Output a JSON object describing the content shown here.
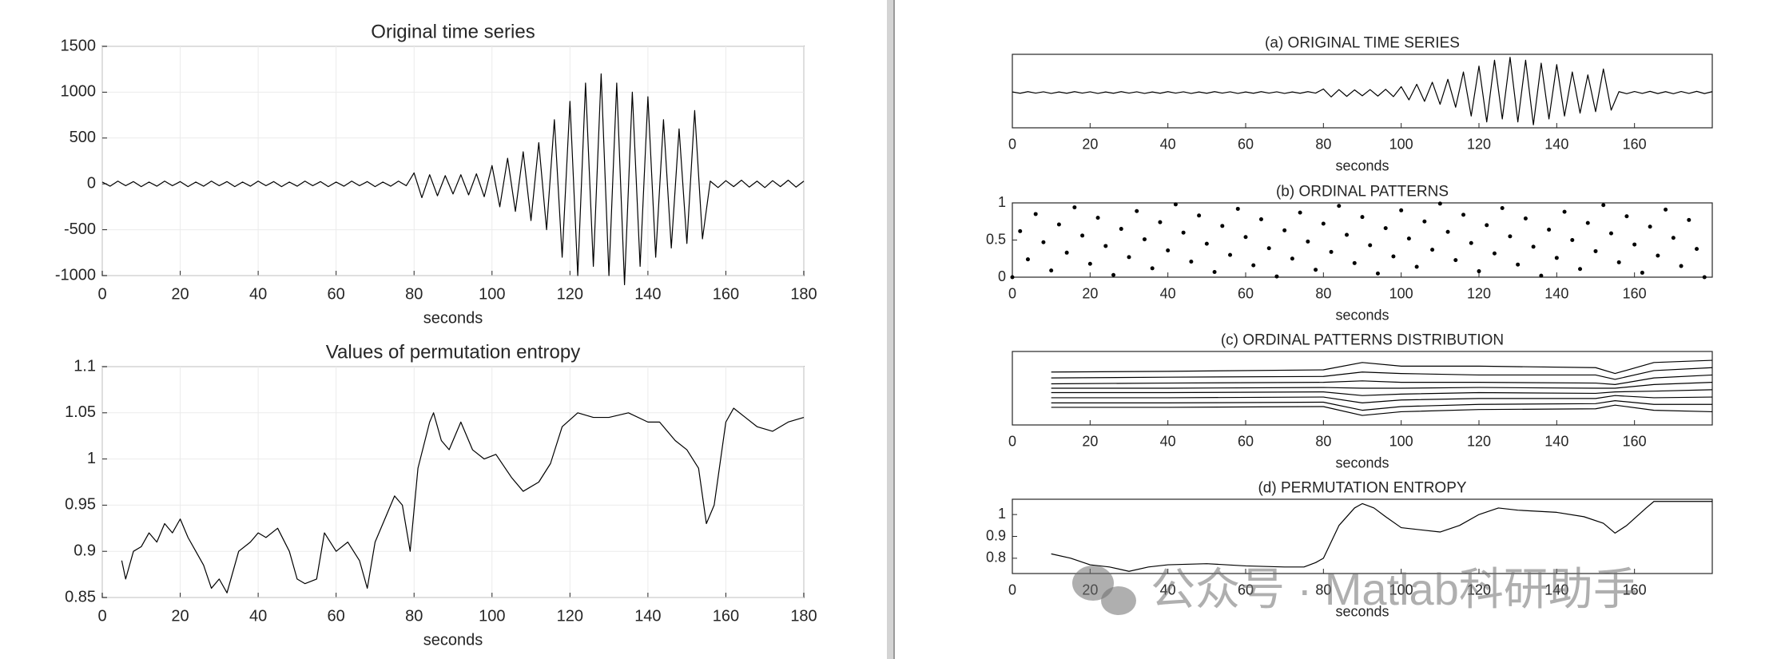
{
  "chart_data": [
    {
      "type": "line",
      "title": "Original time series",
      "xlabel": "seconds",
      "color": "#000000",
      "grid": true,
      "xlim": [
        0,
        180
      ],
      "ylim": [
        -1000,
        1500
      ],
      "xticks": [
        0,
        20,
        40,
        60,
        80,
        100,
        120,
        140,
        160,
        180
      ],
      "yticks": [
        -1000,
        -500,
        0,
        500,
        1000,
        1500
      ],
      "x": [
        0,
        2,
        4,
        6,
        8,
        10,
        12,
        14,
        16,
        18,
        20,
        22,
        24,
        26,
        28,
        30,
        32,
        34,
        36,
        38,
        40,
        42,
        44,
        46,
        48,
        50,
        52,
        54,
        56,
        58,
        60,
        62,
        64,
        66,
        68,
        70,
        72,
        74,
        76,
        78,
        80,
        82,
        84,
        86,
        88,
        90,
        92,
        94,
        96,
        98,
        100,
        102,
        104,
        106,
        108,
        110,
        112,
        114,
        116,
        118,
        120,
        122,
        124,
        126,
        128,
        130,
        132,
        134,
        136,
        138,
        140,
        142,
        144,
        146,
        148,
        150,
        152,
        154,
        156,
        158,
        160,
        162,
        164,
        166,
        168,
        170,
        172,
        174,
        176,
        178,
        180
      ],
      "values": [
        20,
        -25,
        30,
        -20,
        25,
        -30,
        20,
        -25,
        30,
        -20,
        25,
        -30,
        20,
        -25,
        30,
        -20,
        25,
        -30,
        20,
        -25,
        30,
        -20,
        25,
        -30,
        20,
        -25,
        30,
        -20,
        25,
        -30,
        20,
        -25,
        30,
        -20,
        25,
        -30,
        20,
        -25,
        30,
        -20,
        120,
        -150,
        100,
        -130,
        90,
        -110,
        100,
        -120,
        110,
        -140,
        200,
        -250,
        280,
        -300,
        350,
        -400,
        450,
        -500,
        700,
        -800,
        900,
        -1000,
        1100,
        -900,
        1200,
        -1000,
        1100,
        -1100,
        1000,
        -900,
        950,
        -800,
        700,
        -700,
        600,
        -650,
        800,
        -600,
        30,
        -40,
        35,
        -30,
        40,
        -35,
        30,
        -40,
        35,
        -30,
        40,
        -35,
        30
      ]
    },
    {
      "type": "line",
      "title": "Values of permutation entropy",
      "xlabel": "seconds",
      "color": "#000000",
      "grid": true,
      "xlim": [
        0,
        180
      ],
      "ylim": [
        0.85,
        1.1
      ],
      "xticks": [
        0,
        20,
        40,
        60,
        80,
        100,
        120,
        140,
        160,
        180
      ],
      "yticks": [
        0.85,
        0.9,
        0.95,
        1,
        1.05,
        1.1
      ],
      "x": [
        5,
        6,
        8,
        10,
        12,
        14,
        16,
        18,
        20,
        22,
        24,
        26,
        28,
        30,
        32,
        35,
        38,
        40,
        42,
        45,
        48,
        50,
        52,
        55,
        57,
        60,
        63,
        66,
        68,
        70,
        73,
        75,
        77,
        79,
        81,
        84,
        85,
        87,
        89,
        92,
        95,
        98,
        101,
        105,
        108,
        112,
        115,
        118,
        122,
        126,
        130,
        135,
        140,
        143,
        147,
        150,
        153,
        155,
        157,
        160,
        162,
        165,
        168,
        172,
        176,
        180
      ],
      "values": [
        0.89,
        0.87,
        0.9,
        0.905,
        0.92,
        0.91,
        0.93,
        0.92,
        0.935,
        0.915,
        0.9,
        0.885,
        0.86,
        0.87,
        0.855,
        0.9,
        0.91,
        0.92,
        0.915,
        0.925,
        0.9,
        0.87,
        0.865,
        0.87,
        0.92,
        0.9,
        0.91,
        0.89,
        0.86,
        0.91,
        0.94,
        0.96,
        0.95,
        0.9,
        0.99,
        1.04,
        1.05,
        1.02,
        1.01,
        1.04,
        1.01,
        1.0,
        1.005,
        0.98,
        0.965,
        0.975,
        0.995,
        1.035,
        1.05,
        1.045,
        1.045,
        1.05,
        1.04,
        1.04,
        1.02,
        1.01,
        0.99,
        0.93,
        0.95,
        1.04,
        1.055,
        1.045,
        1.035,
        1.03,
        1.04,
        1.045
      ]
    },
    {
      "type": "line",
      "title": "(a) ORIGINAL TIME SERIES",
      "xlabel": "seconds",
      "color": "#000000",
      "grid": false,
      "xlim": [
        0,
        180
      ],
      "ylim": [
        -1200,
        1300
      ],
      "xticks": [
        0,
        20,
        40,
        60,
        80,
        100,
        120,
        140,
        160
      ],
      "x": [
        0,
        2,
        4,
        6,
        8,
        10,
        12,
        14,
        16,
        18,
        20,
        22,
        24,
        26,
        28,
        30,
        32,
        34,
        36,
        38,
        40,
        42,
        44,
        46,
        48,
        50,
        52,
        54,
        56,
        58,
        60,
        62,
        64,
        66,
        68,
        70,
        72,
        74,
        76,
        78,
        80,
        82,
        84,
        86,
        88,
        90,
        92,
        94,
        96,
        98,
        100,
        102,
        104,
        106,
        108,
        110,
        112,
        114,
        116,
        118,
        120,
        122,
        124,
        126,
        128,
        130,
        132,
        134,
        136,
        138,
        140,
        142,
        144,
        146,
        148,
        150,
        152,
        154,
        156,
        158,
        160,
        162,
        164,
        166,
        168,
        170,
        172,
        174,
        176,
        178,
        180
      ],
      "values": [
        20,
        -25,
        30,
        -20,
        25,
        -30,
        20,
        -25,
        30,
        -20,
        25,
        -30,
        20,
        -25,
        30,
        -20,
        25,
        -30,
        20,
        -25,
        30,
        -20,
        25,
        -30,
        20,
        -25,
        30,
        -20,
        25,
        -30,
        20,
        -25,
        30,
        -20,
        25,
        -30,
        20,
        -25,
        30,
        -20,
        120,
        -150,
        100,
        -130,
        90,
        -110,
        100,
        -120,
        110,
        -140,
        200,
        -250,
        280,
        -300,
        350,
        -400,
        450,
        -500,
        700,
        -800,
        900,
        -1000,
        1100,
        -900,
        1200,
        -1000,
        1100,
        -1100,
        1000,
        -900,
        950,
        -800,
        700,
        -700,
        600,
        -650,
        800,
        -600,
        30,
        -40,
        35,
        -30,
        40,
        -35,
        30,
        -40,
        35,
        -30,
        40,
        -35,
        30
      ]
    },
    {
      "type": "scatter",
      "title": "(b) ORDINAL PATTERNS",
      "xlabel": "seconds",
      "color": "#000000",
      "grid": false,
      "xlim": [
        0,
        180
      ],
      "ylim": [
        0,
        1
      ],
      "xticks": [
        0,
        20,
        40,
        60,
        80,
        100,
        120,
        140,
        160
      ],
      "yticks": [
        0,
        0.5,
        1
      ],
      "x": [
        0,
        2,
        4,
        6,
        8,
        10,
        12,
        14,
        16,
        18,
        20,
        22,
        24,
        26,
        28,
        30,
        32,
        34,
        36,
        38,
        40,
        42,
        44,
        46,
        48,
        50,
        52,
        54,
        56,
        58,
        60,
        62,
        64,
        66,
        68,
        70,
        72,
        74,
        76,
        78,
        80,
        82,
        84,
        86,
        88,
        90,
        92,
        94,
        96,
        98,
        100,
        102,
        104,
        106,
        108,
        110,
        112,
        114,
        116,
        118,
        120,
        122,
        124,
        126,
        128,
        130,
        132,
        134,
        136,
        138,
        140,
        142,
        144,
        146,
        148,
        150,
        152,
        154,
        156,
        158,
        160,
        162,
        164,
        166,
        168,
        170,
        172,
        174,
        176,
        178
      ],
      "values": [
        0,
        0.62,
        0.24,
        0.85,
        0.47,
        0.09,
        0.71,
        0.33,
        0.94,
        0.56,
        0.18,
        0.8,
        0.42,
        0.03,
        0.65,
        0.27,
        0.89,
        0.51,
        0.12,
        0.74,
        0.36,
        0.98,
        0.6,
        0.21,
        0.83,
        0.45,
        0.07,
        0.69,
        0.3,
        0.92,
        0.54,
        0.16,
        0.78,
        0.39,
        0.01,
        0.63,
        0.25,
        0.87,
        0.48,
        0.1,
        0.72,
        0.34,
        0.96,
        0.57,
        0.19,
        0.81,
        0.43,
        0.05,
        0.66,
        0.28,
        0.9,
        0.52,
        0.14,
        0.75,
        0.37,
        0.99,
        0.61,
        0.23,
        0.84,
        0.46,
        0.08,
        0.7,
        0.32,
        0.93,
        0.55,
        0.17,
        0.79,
        0.41,
        0.02,
        0.64,
        0.26,
        0.88,
        0.5,
        0.11,
        0.73,
        0.35,
        0.97,
        0.59,
        0.2,
        0.82,
        0.44,
        0.06,
        0.68,
        0.29,
        0.91,
        0.53,
        0.15,
        0.77,
        0.38,
        0
      ]
    },
    {
      "type": "line",
      "title": "(c) ORDINAL PATTERNS DISTRIBUTION",
      "xlabel": "seconds",
      "color": "#000000",
      "grid": false,
      "xlim": [
        0,
        180
      ],
      "ylim": [
        0,
        1
      ],
      "xticks": [
        0,
        20,
        40,
        60,
        80,
        100,
        120,
        140,
        160
      ],
      "x": [
        10,
        40,
        80,
        90,
        100,
        120,
        150,
        155,
        165,
        180
      ],
      "series": [
        {
          "values": [
            0.72,
            0.73,
            0.75,
            0.85,
            0.8,
            0.8,
            0.78,
            0.7,
            0.85,
            0.88
          ]
        },
        {
          "values": [
            0.64,
            0.65,
            0.66,
            0.72,
            0.7,
            0.68,
            0.68,
            0.62,
            0.74,
            0.78
          ]
        },
        {
          "values": [
            0.56,
            0.57,
            0.58,
            0.6,
            0.58,
            0.58,
            0.57,
            0.55,
            0.64,
            0.68
          ]
        },
        {
          "values": [
            0.5,
            0.5,
            0.51,
            0.5,
            0.5,
            0.51,
            0.5,
            0.5,
            0.55,
            0.58
          ]
        },
        {
          "values": [
            0.44,
            0.44,
            0.45,
            0.4,
            0.42,
            0.44,
            0.43,
            0.45,
            0.46,
            0.48
          ]
        },
        {
          "values": [
            0.37,
            0.37,
            0.38,
            0.3,
            0.34,
            0.36,
            0.36,
            0.4,
            0.37,
            0.38
          ]
        },
        {
          "values": [
            0.3,
            0.3,
            0.31,
            0.2,
            0.25,
            0.28,
            0.29,
            0.33,
            0.28,
            0.28
          ]
        },
        {
          "values": [
            0.24,
            0.24,
            0.25,
            0.13,
            0.18,
            0.21,
            0.22,
            0.27,
            0.2,
            0.18
          ]
        }
      ]
    },
    {
      "type": "line",
      "title": "(d) PERMUTATION ENTROPY",
      "xlabel": "seconds",
      "color": "#000000",
      "grid": false,
      "xlim": [
        0,
        180
      ],
      "ylim": [
        0.73,
        1.07
      ],
      "xticks": [
        0,
        20,
        40,
        60,
        80,
        100,
        120,
        140,
        160
      ],
      "yticks": [
        0.8,
        0.9,
        1
      ],
      "x": [
        10,
        15,
        20,
        25,
        30,
        35,
        40,
        50,
        60,
        70,
        75,
        78,
        80,
        84,
        88,
        90,
        93,
        96,
        100,
        105,
        110,
        115,
        120,
        125,
        130,
        140,
        147,
        152,
        155,
        158,
        163,
        165,
        180
      ],
      "values": [
        0.82,
        0.8,
        0.77,
        0.76,
        0.74,
        0.76,
        0.77,
        0.775,
        0.765,
        0.76,
        0.76,
        0.78,
        0.8,
        0.95,
        1.03,
        1.05,
        1.03,
        0.99,
        0.94,
        0.93,
        0.92,
        0.95,
        1.0,
        1.03,
        1.02,
        1.01,
        0.99,
        0.96,
        0.915,
        0.95,
        1.03,
        1.06,
        1.06
      ]
    }
  ],
  "watermark": "公众号 · Matlab科研助手"
}
